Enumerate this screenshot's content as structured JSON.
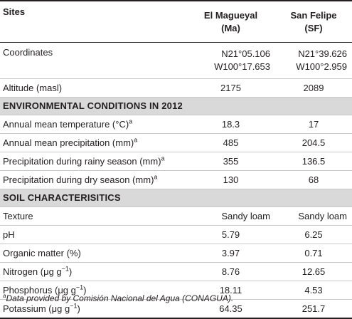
{
  "header": {
    "sites": "Sites",
    "ma_name": "El Magueyal",
    "ma_abbr": "(Ma)",
    "sf_name": "San Felipe",
    "sf_abbr": "(SF)"
  },
  "general": {
    "coordinates": {
      "label": "Coordinates",
      "ma_line1": "N21°05.106",
      "ma_line2": "W100°17.653",
      "sf_line1": "N21°39.626",
      "sf_line2": "W100°2.959"
    },
    "altitude": {
      "label": "Altitude (masl)",
      "ma": "2175",
      "sf": "2089"
    }
  },
  "env_section": {
    "title": "ENVIRONMENTAL CONDITIONS IN 2012",
    "rows": [
      {
        "label": "Annual mean temperature (°C)",
        "sup": "a",
        "ma": "18.3",
        "sf": "17"
      },
      {
        "label": "Annual mean precipitation (mm)",
        "sup": "a",
        "ma": "485",
        "sf": "204.5"
      },
      {
        "label": "Precipitation during rainy season (mm)",
        "sup": "a",
        "ma": "355",
        "sf": "136.5"
      },
      {
        "label": "Precipitation during dry season (mm)",
        "sup": "a",
        "ma": "130",
        "sf": "68"
      }
    ]
  },
  "soil_section": {
    "title": "SOIL CHARACTERISITICS",
    "texture": {
      "label": "Texture",
      "ma": "Sandy loam",
      "sf": "Sandy loam"
    },
    "ph": {
      "label": "pH",
      "ma": "5.79",
      "sf": "6.25"
    },
    "organic": {
      "label": "Organic matter (%)",
      "ma": "3.97",
      "sf": "0.71"
    },
    "nitrogen": {
      "label": "Nitrogen (μg g",
      "exp": "−1",
      "close": ")",
      "ma": "8.76",
      "sf": "12.65"
    },
    "phosphorus": {
      "label": "Phosphorus (μg g",
      "exp": "−1",
      "close": ")",
      "ma": "18.11",
      "sf": "4.53"
    },
    "potassium": {
      "label": "Potassium (μg g",
      "exp": "−1",
      "close": ")",
      "ma": "64.35",
      "sf": "251.7"
    }
  },
  "footnote": {
    "sup": "a",
    "text": "Data provided by Comisión Nacional del Agua (CONAGUA)."
  }
}
